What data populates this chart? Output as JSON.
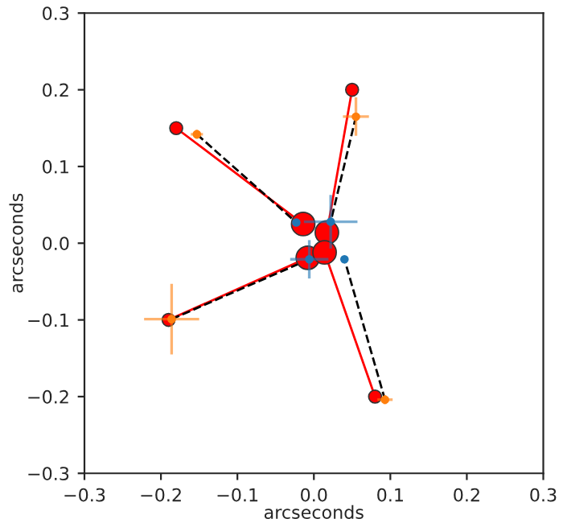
{
  "chart_data": {
    "type": "scatter",
    "xlabel": "arcseconds",
    "ylabel": "arcseconds",
    "xlim": [
      -0.3,
      0.3
    ],
    "ylim": [
      -0.3,
      0.3
    ],
    "xticks": [
      -0.3,
      -0.2,
      -0.1,
      {
        "value": 0,
        "label": "0.0"
      },
      0.1,
      0.2,
      0.3
    ],
    "yticks": [
      -0.3,
      -0.2,
      -0.1,
      {
        "value": 0,
        "label": "0.0"
      },
      0.1,
      0.2,
      0.3
    ],
    "grid": false,
    "legend": false,
    "series": [
      {
        "type": "line",
        "color": "#ff0000",
        "line_style": "solid",
        "x": [
          0.05,
          0.017
        ],
        "values": [
          0.2,
          0.014
        ]
      },
      {
        "type": "line",
        "color": "#ff0000",
        "line_style": "solid",
        "x": [
          -0.18,
          -0.014
        ],
        "values": [
          0.15,
          0.025
        ]
      },
      {
        "type": "line",
        "color": "#ff0000",
        "line_style": "solid",
        "x": [
          -0.19,
          -0.008
        ],
        "values": [
          -0.1,
          -0.019
        ]
      },
      {
        "type": "line",
        "color": "#ff0000",
        "line_style": "solid",
        "x": [
          0.08,
          0.014
        ],
        "values": [
          -0.2,
          -0.012
        ]
      },
      {
        "type": "line",
        "color": "#000000",
        "line_style": "dashed",
        "x": [
          0.055,
          0.022
        ],
        "values": [
          0.165,
          0.028
        ]
      },
      {
        "type": "line",
        "color": "#000000",
        "line_style": "dashed",
        "x": [
          -0.153,
          -0.023
        ],
        "values": [
          0.142,
          0.027
        ]
      },
      {
        "type": "line",
        "color": "#000000",
        "line_style": "dashed",
        "x": [
          -0.186,
          -0.006
        ],
        "values": [
          -0.099,
          -0.021
        ]
      },
      {
        "type": "line",
        "color": "#000000",
        "line_style": "dashed",
        "x": [
          0.093,
          0.04
        ],
        "values": [
          -0.204,
          -0.021
        ]
      },
      {
        "color": "#1f77b4",
        "x": [
          -0.023,
          0.022,
          -0.006,
          0.04
        ],
        "values": [
          0.027,
          0.028,
          -0.021,
          -0.021
        ],
        "xerrors": [
          null,
          0.035,
          0.025,
          null
        ],
        "errors": [
          null,
          0.035,
          0.025,
          null
        ]
      },
      {
        "color": "#ff7f0e",
        "x": [
          0.055,
          -0.153,
          -0.186,
          0.093
        ],
        "values": [
          0.165,
          0.142,
          -0.099,
          -0.204
        ],
        "xerrors": [
          0.017,
          0.008,
          0.036,
          0.01
        ],
        "errors": [
          0.025,
          0.006,
          0.046,
          0.006
        ]
      },
      {
        "type": "bubble",
        "color": "#ff0000",
        "x": [
          0.05,
          -0.18,
          -0.19,
          0.08,
          -0.014,
          0.017,
          -0.008,
          0.014
        ],
        "values": [
          0.2,
          0.15,
          -0.1,
          -0.2,
          0.025,
          0.014,
          -0.019,
          -0.012
        ],
        "sizes": [
          0.3,
          0.3,
          0.3,
          0.3,
          1,
          1,
          1,
          1
        ]
      }
    ]
  }
}
